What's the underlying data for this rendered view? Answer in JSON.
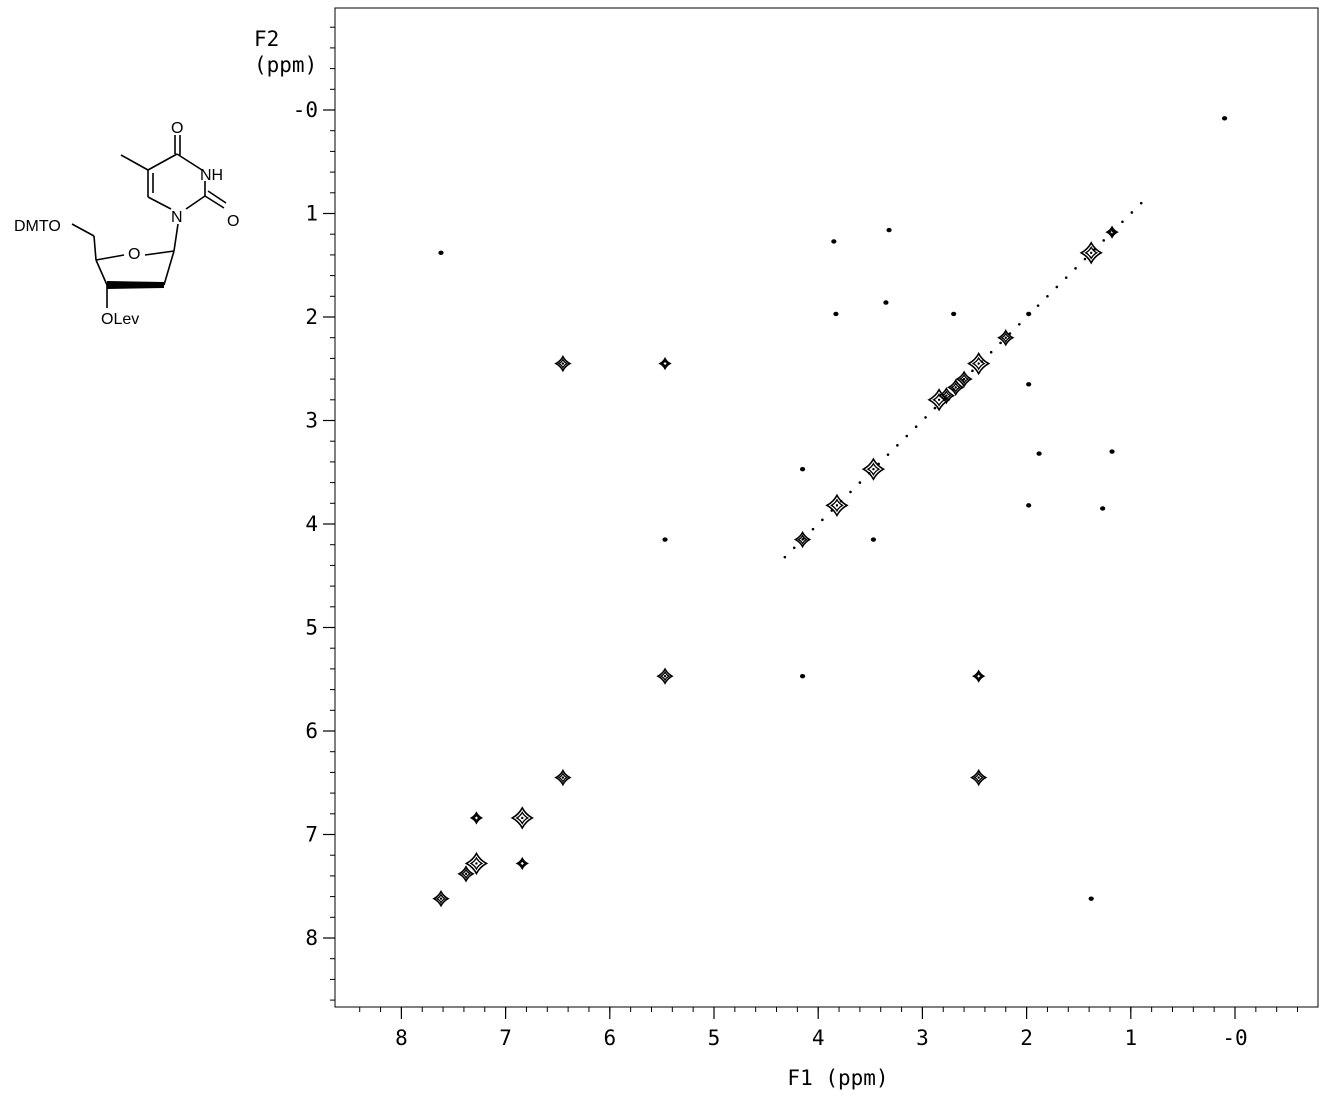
{
  "chart_data": {
    "type": "scatter",
    "subtype": "2D COSY NMR contour plot",
    "xlabel": "F1 (ppm)",
    "ylabel_line1": "F2",
    "ylabel_line2": "(ppm)",
    "x_axis_reversed": true,
    "y_axis_increasing_downward": true,
    "xlim": [
      8.5,
      -0.8
    ],
    "ylim": [
      -0.8,
      8.6
    ],
    "x_ticks": [
      {
        "value": 8,
        "label": "8"
      },
      {
        "value": 7,
        "label": "7"
      },
      {
        "value": 6,
        "label": "6"
      },
      {
        "value": 5,
        "label": "5"
      },
      {
        "value": 4,
        "label": "4"
      },
      {
        "value": 3,
        "label": "3"
      },
      {
        "value": 2,
        "label": "2"
      },
      {
        "value": 1,
        "label": "1"
      },
      {
        "value": 0,
        "label": "-0"
      }
    ],
    "y_ticks": [
      {
        "value": 0,
        "label": "-0"
      },
      {
        "value": 1,
        "label": "1"
      },
      {
        "value": 2,
        "label": "2"
      },
      {
        "value": 3,
        "label": "3"
      },
      {
        "value": 4,
        "label": "4"
      },
      {
        "value": 5,
        "label": "5"
      },
      {
        "value": 6,
        "label": "6"
      },
      {
        "value": 7,
        "label": "7"
      },
      {
        "value": 8,
        "label": "8"
      }
    ],
    "diagonal_peaks": [
      {
        "f1": 7.62,
        "f2": 7.62,
        "size": "m"
      },
      {
        "f1": 7.38,
        "f2": 7.38,
        "size": "m"
      },
      {
        "f1": 7.28,
        "f2": 7.28,
        "size": "l"
      },
      {
        "f1": 6.84,
        "f2": 6.84,
        "size": "l"
      },
      {
        "f1": 6.45,
        "f2": 6.45,
        "size": "m"
      },
      {
        "f1": 5.47,
        "f2": 5.47,
        "size": "m"
      },
      {
        "f1": 4.15,
        "f2": 4.15,
        "size": "m"
      },
      {
        "f1": 3.82,
        "f2": 3.82,
        "size": "l"
      },
      {
        "f1": 3.47,
        "f2": 3.47,
        "size": "l"
      },
      {
        "f1": 2.84,
        "f2": 2.8,
        "size": "l"
      },
      {
        "f1": 2.77,
        "f2": 2.76,
        "size": "m"
      },
      {
        "f1": 2.68,
        "f2": 2.68,
        "size": "m"
      },
      {
        "f1": 2.6,
        "f2": 2.6,
        "size": "m"
      },
      {
        "f1": 2.46,
        "f2": 2.45,
        "size": "l"
      },
      {
        "f1": 2.2,
        "f2": 2.2,
        "size": "m"
      },
      {
        "f1": 1.38,
        "f2": 1.38,
        "size": "l"
      },
      {
        "f1": 1.18,
        "f2": 1.18,
        "size": "s"
      },
      {
        "f1": 0.1,
        "f2": 0.08,
        "size": "xs"
      }
    ],
    "cross_peaks": [
      {
        "f1": 7.62,
        "f2": 1.38,
        "size": "xs"
      },
      {
        "f1": 1.38,
        "f2": 7.62,
        "size": "xs"
      },
      {
        "f1": 7.28,
        "f2": 6.84,
        "size": "s"
      },
      {
        "f1": 6.84,
        "f2": 7.28,
        "size": "s"
      },
      {
        "f1": 6.45,
        "f2": 2.45,
        "size": "m"
      },
      {
        "f1": 2.46,
        "f2": 6.45,
        "size": "m"
      },
      {
        "f1": 5.47,
        "f2": 2.45,
        "size": "s"
      },
      {
        "f1": 2.46,
        "f2": 5.47,
        "size": "s"
      },
      {
        "f1": 5.47,
        "f2": 4.15,
        "size": "xs"
      },
      {
        "f1": 4.15,
        "f2": 5.47,
        "size": "xs"
      },
      {
        "f1": 4.15,
        "f2": 3.47,
        "size": "xs"
      },
      {
        "f1": 3.47,
        "f2": 4.15,
        "size": "xs"
      },
      {
        "f1": 3.85,
        "f2": 1.27,
        "size": "xs"
      },
      {
        "f1": 1.27,
        "f2": 3.85,
        "size": "xs"
      },
      {
        "f1": 3.83,
        "f2": 1.97,
        "size": "xs"
      },
      {
        "f1": 1.98,
        "f2": 3.82,
        "size": "xs"
      },
      {
        "f1": 3.32,
        "f2": 1.16,
        "size": "xs"
      },
      {
        "f1": 1.18,
        "f2": 3.3,
        "size": "xs"
      },
      {
        "f1": 2.7,
        "f2": 1.97,
        "size": "xs"
      },
      {
        "f1": 1.98,
        "f2": 2.65,
        "size": "xs"
      },
      {
        "f1": 1.98,
        "f2": 1.97,
        "size": "xs"
      },
      {
        "f1": 3.35,
        "f2": 1.86,
        "size": "xs"
      },
      {
        "f1": 1.88,
        "f2": 3.32,
        "size": "xs"
      }
    ]
  },
  "molecule": {
    "labels": {
      "o_carbonyl_top": "O",
      "nh": "NH",
      "o_carbonyl_right": "O",
      "n_ring": "N",
      "o_sugar": "O",
      "dmto": "DMTO",
      "olev": "OLev"
    }
  }
}
